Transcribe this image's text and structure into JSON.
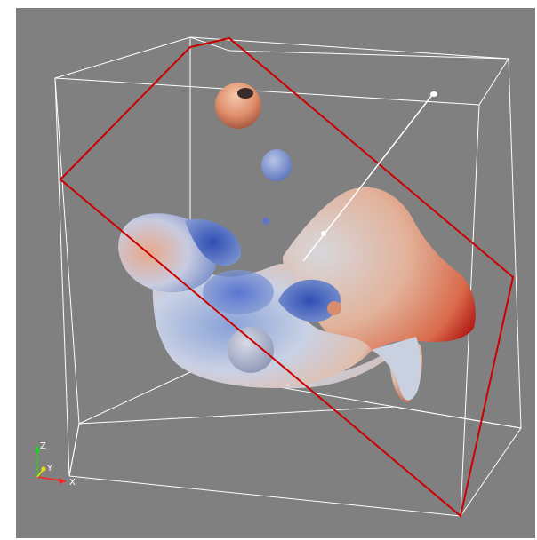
{
  "viewport": {
    "background": "#808080"
  },
  "scene": {
    "bounding_box_color": "#ffffff",
    "slice_plane_color": "#cc0000",
    "colormap": {
      "low": "#3b5bd0",
      "mid": "#dcdcdc",
      "high": "#c0281e"
    }
  },
  "orientation_axes": {
    "x_label": "X",
    "y_label": "Y",
    "z_label": "Z",
    "x_color": "#ff2020",
    "y_color": "#e8e800",
    "z_color": "#20d020"
  }
}
